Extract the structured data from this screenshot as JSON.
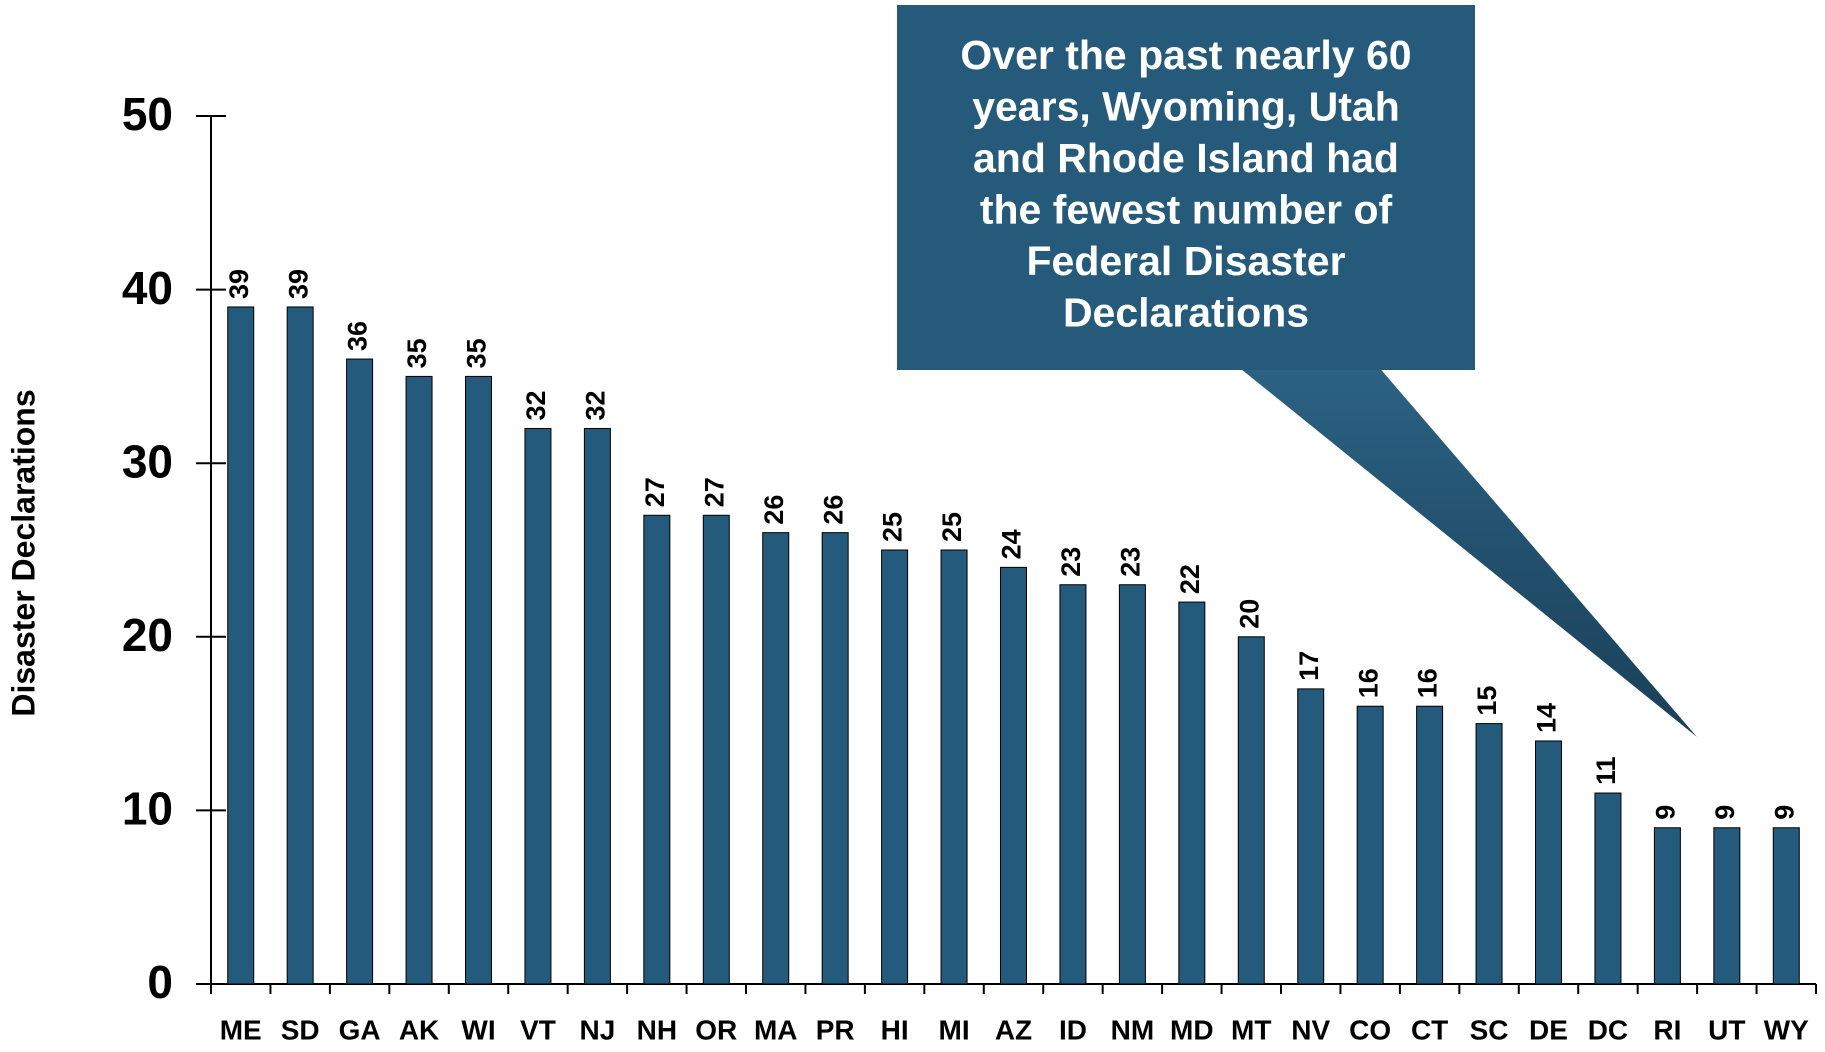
{
  "chart_data": {
    "type": "bar",
    "y_label": "Disaster Declarations",
    "annotation": [
      "Over the past nearly 60",
      "years, Wyoming, Utah",
      "and Rhode Island had",
      "the fewest number of",
      "Federal Disaster",
      "Declarations"
    ],
    "categories": [
      "ME",
      "SD",
      "GA",
      "AK",
      "WI",
      "VT",
      "NJ",
      "NH",
      "OR",
      "MA",
      "PR",
      "HI",
      "MI",
      "AZ",
      "ID",
      "NM",
      "MD",
      "MT",
      "NV",
      "CO",
      "CT",
      "SC",
      "DE",
      "DC",
      "RI",
      "UT",
      "WY"
    ],
    "values": [
      39,
      39,
      36,
      35,
      35,
      32,
      32,
      27,
      27,
      26,
      26,
      25,
      25,
      24,
      23,
      23,
      22,
      20,
      17,
      16,
      16,
      15,
      14,
      11,
      9,
      9,
      9
    ],
    "color": "#245a7c",
    "ylim": [
      0,
      50
    ],
    "yticks": [
      0,
      10,
      20,
      30,
      40,
      50
    ],
    "grid": false
  }
}
